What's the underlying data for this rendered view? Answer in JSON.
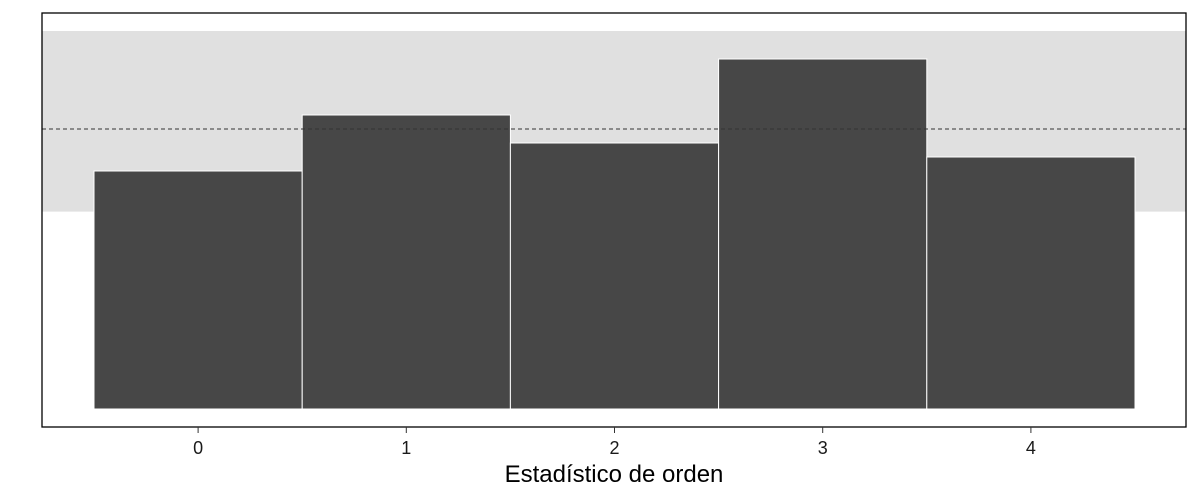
{
  "chart_data": {
    "type": "bar",
    "title": "",
    "xlabel": "Estadístico de orden",
    "ylabel": "",
    "categories": [
      "0",
      "1",
      "2",
      "3",
      "4"
    ],
    "values": [
      17,
      21,
      19,
      25,
      18
    ],
    "ylim": [
      0,
      27.5
    ],
    "expected_count": 20,
    "confidence_band": [
      14.1,
      27
    ],
    "grid": false,
    "y_ticks_shown": false,
    "colors": {
      "bar_fill": "#474747",
      "bar_edge": "#ffffff",
      "band_fill": "#e0e0e0",
      "expected_line": "#333333",
      "panel_border": "#000000"
    }
  }
}
